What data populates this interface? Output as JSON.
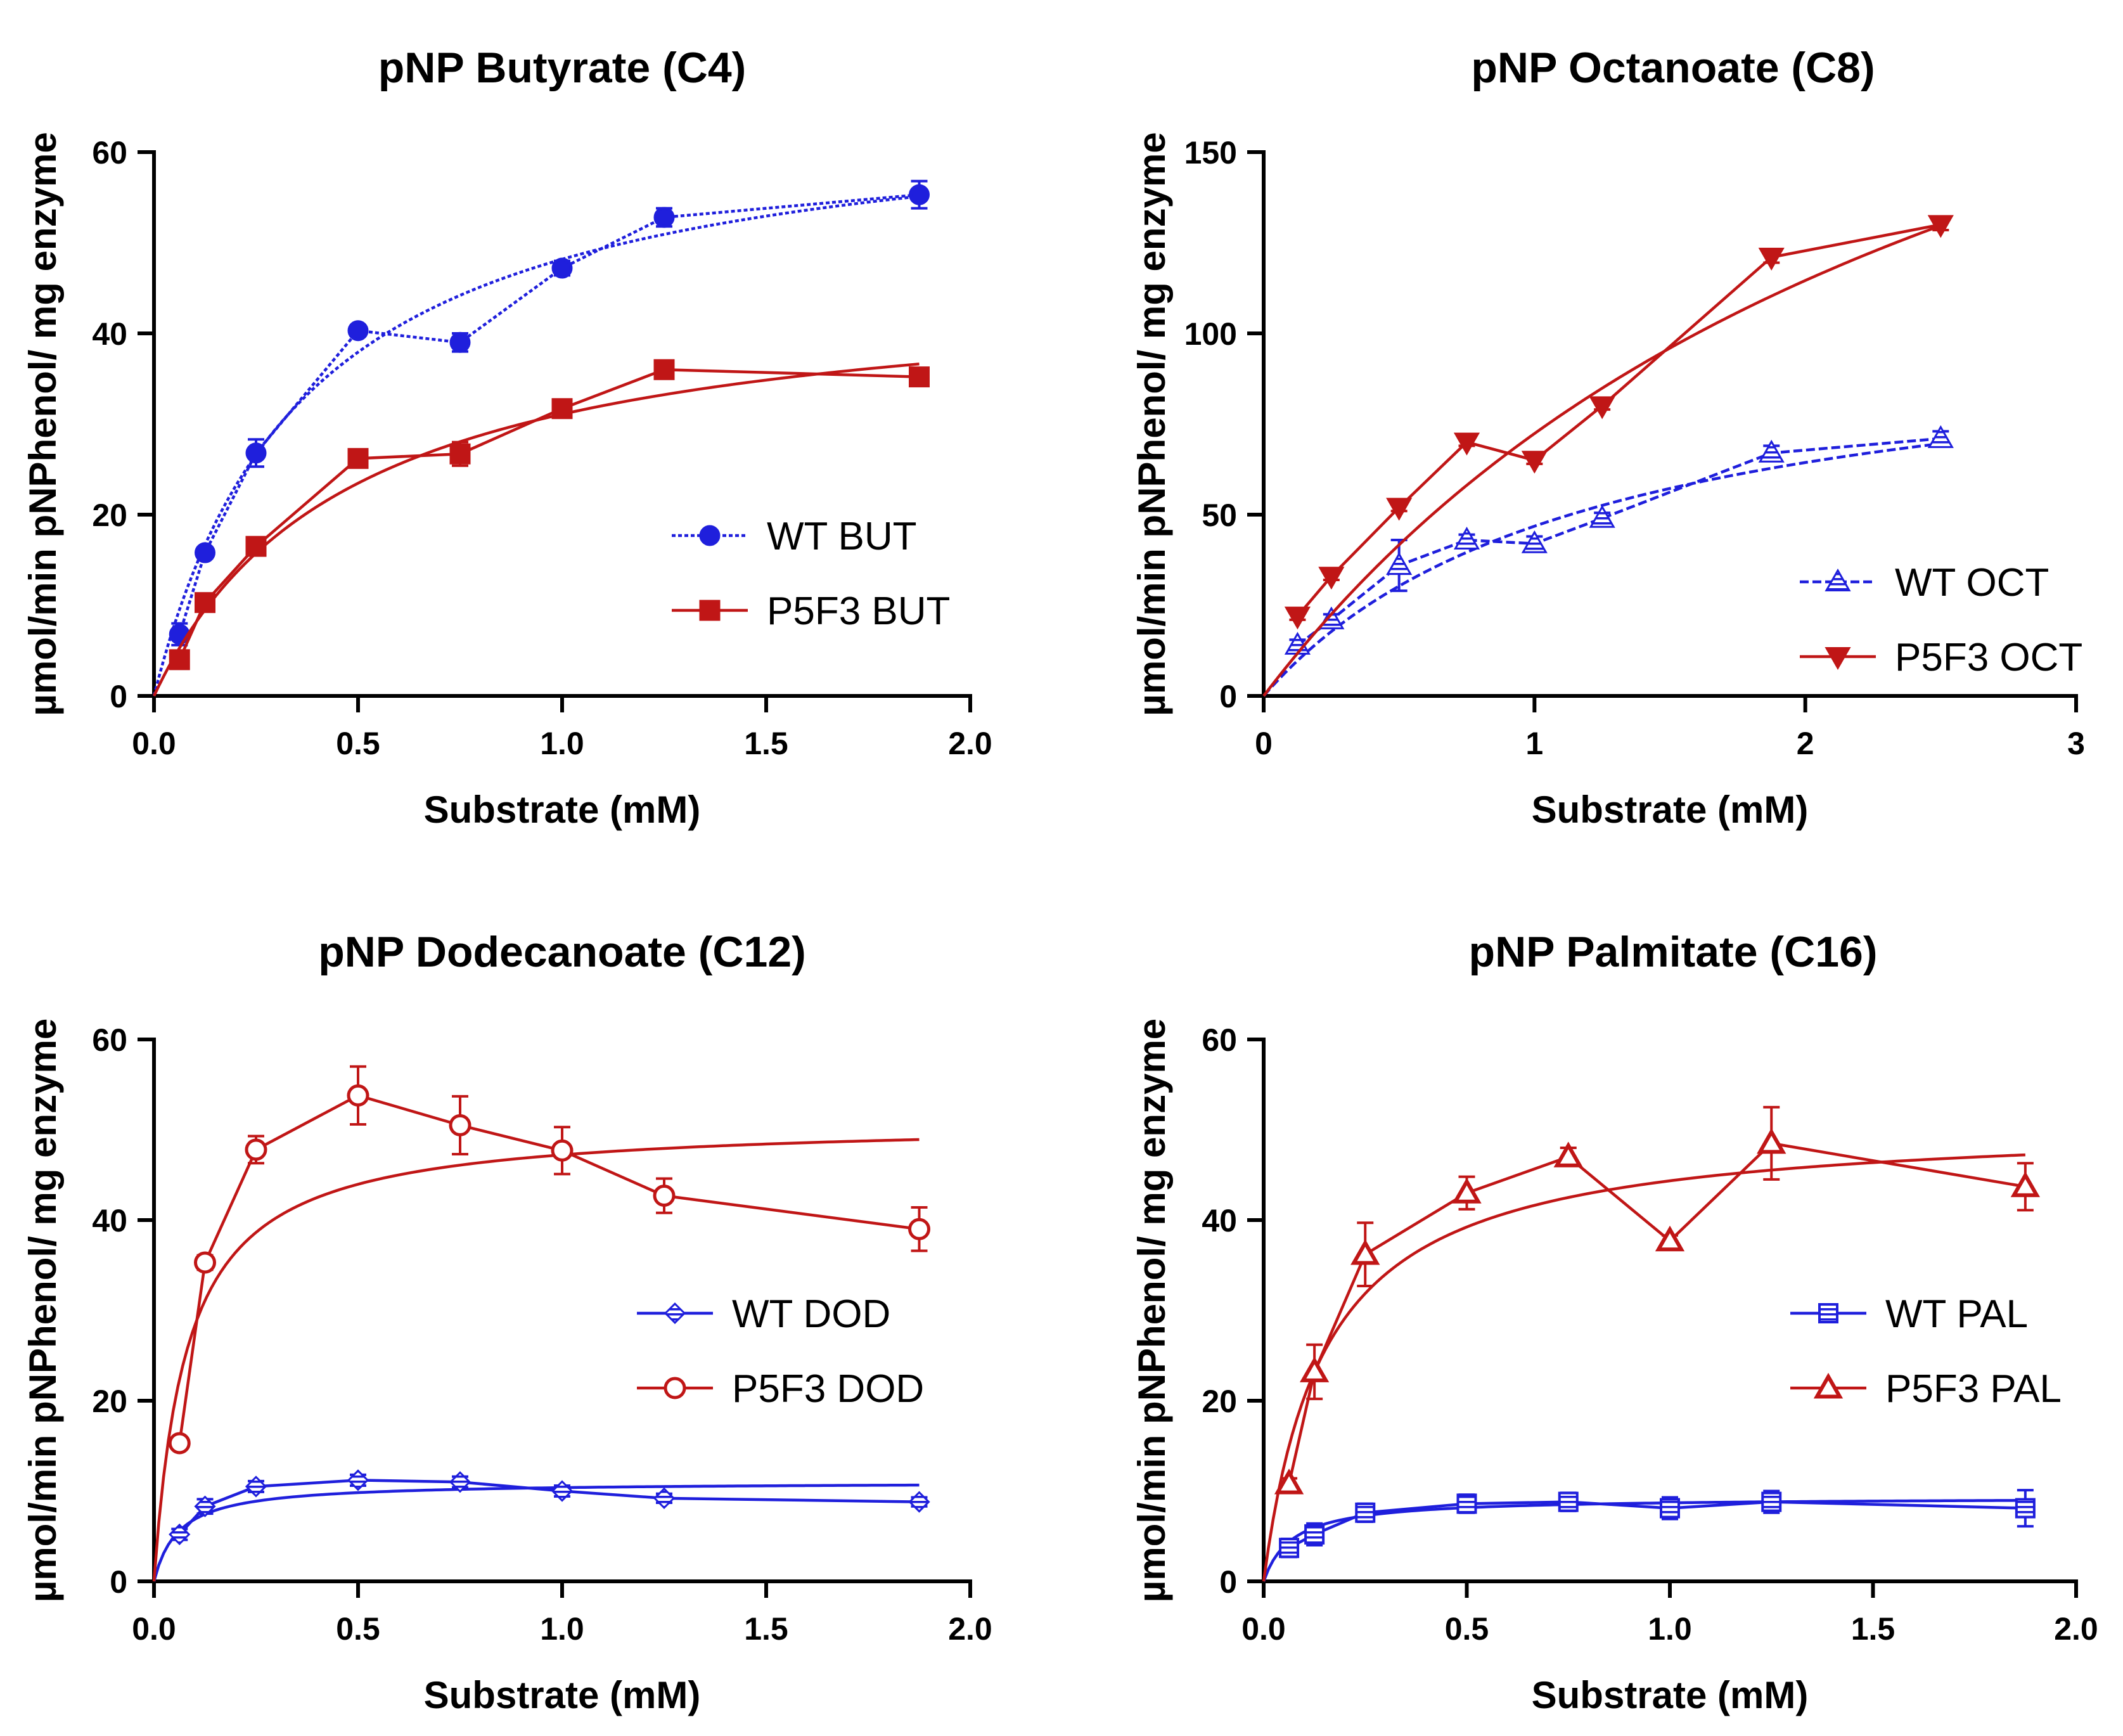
{
  "chart_data": [
    {
      "type": "line",
      "title": "pNP Butyrate (C4)",
      "xlabel": "Substrate (mM)",
      "ylabel": "µmol/min pNPhenol/ mg enzyme",
      "xlim": [
        0,
        2.0
      ],
      "ylim": [
        0,
        60
      ],
      "xticks": [
        0.0,
        0.5,
        1.0,
        1.5,
        2.0
      ],
      "yticks": [
        0,
        20,
        40,
        60
      ],
      "xtick_labels": [
        "0.0",
        "0.5",
        "1.0",
        "1.5",
        "2.0"
      ],
      "ytick_labels": [
        "0",
        "20",
        "40",
        "60"
      ],
      "legend_position": "right-middle",
      "series": [
        {
          "name": "WT BUT",
          "color": "#1f1fdc",
          "marker": "circle-filled",
          "line": "dotted",
          "x": [
            0.0625,
            0.125,
            0.25,
            0.5,
            0.75,
            1.0,
            1.25,
            1.875
          ],
          "y": [
            6.8,
            15.8,
            26.8,
            40.3,
            39.0,
            47.2,
            52.8,
            55.3
          ],
          "err": [
            1.2,
            0.6,
            1.5,
            0.6,
            1.0,
            0.8,
            1.0,
            1.5
          ],
          "fit": {
            "model": "michaelis-menten",
            "vmax": 66.0,
            "km": 0.37
          }
        },
        {
          "name": "P5F3 BUT",
          "color": "#c01616",
          "marker": "square-filled",
          "line": "solid",
          "x": [
            0.0625,
            0.125,
            0.25,
            0.5,
            0.75,
            1.0,
            1.25,
            1.875
          ],
          "y": [
            4.0,
            10.3,
            16.5,
            26.2,
            26.7,
            31.7,
            36.0,
            35.2
          ],
          "err": [
            0.5,
            0.5,
            0.6,
            0.6,
            1.3,
            0.6,
            0.6,
            0.5
          ],
          "fit": {
            "model": "michaelis-menten",
            "vmax": 46.0,
            "km": 0.48
          }
        }
      ]
    },
    {
      "type": "line",
      "title": "pNP Octanoate (C8)",
      "xlabel": "Substrate (mM)",
      "ylabel": "µmol/min pNPhenol/ mg enzyme",
      "xlim": [
        0,
        3
      ],
      "ylim": [
        0,
        150
      ],
      "xticks": [
        0,
        1,
        2,
        3
      ],
      "yticks": [
        0,
        50,
        100,
        150
      ],
      "xtick_labels": [
        "0",
        "1",
        "2",
        "3"
      ],
      "ytick_labels": [
        "0",
        "50",
        "100",
        "150"
      ],
      "legend_position": "bottom-right",
      "series": [
        {
          "name": "WT OCT",
          "color": "#1f1fdc",
          "marker": "triangle-up-striped",
          "line": "dashed",
          "x": [
            0.125,
            0.25,
            0.5,
            0.75,
            1.0,
            1.25,
            1.875,
            2.5
          ],
          "y": [
            14.0,
            21.0,
            36.0,
            43.0,
            42.0,
            49.0,
            67.0,
            71.0
          ],
          "err": [
            1.5,
            1.5,
            7.0,
            1.5,
            2.0,
            1.5,
            2.0,
            2.0
          ],
          "fit": {
            "model": "michaelis-menten",
            "vmax": 103.0,
            "km": 1.2
          }
        },
        {
          "name": "P5F3 OCT",
          "color": "#c01616",
          "marker": "triangle-down-filled",
          "line": "solid",
          "x": [
            0.125,
            0.25,
            0.5,
            0.75,
            1.0,
            1.25,
            1.875,
            2.5
          ],
          "y": [
            22.0,
            33.0,
            52.0,
            70.0,
            65.0,
            80.0,
            121.0,
            130.0
          ],
          "err": [
            1.0,
            1.0,
            1.0,
            1.0,
            1.0,
            1.0,
            1.5,
            1.5
          ],
          "fit": {
            "model": "michaelis-menten",
            "vmax": 275.0,
            "km": 2.8
          }
        }
      ]
    },
    {
      "type": "line",
      "title": "pNP Dodecanoate (C12)",
      "xlabel": "Substrate (mM)",
      "ylabel": "µmol/min pNPhenol/ mg enzyme",
      "xlim": [
        0,
        2.0
      ],
      "ylim": [
        0,
        60
      ],
      "xticks": [
        0.0,
        0.5,
        1.0,
        1.5,
        2.0
      ],
      "yticks": [
        0,
        20,
        40,
        60
      ],
      "xtick_labels": [
        "0.0",
        "0.5",
        "1.0",
        "1.5",
        "2.0"
      ],
      "ytick_labels": [
        "0",
        "20",
        "40",
        "60"
      ],
      "legend_position": "right-middle",
      "series": [
        {
          "name": "WT DOD",
          "color": "#1f1fdc",
          "marker": "diamond-striped",
          "line": "solid",
          "x": [
            0.0625,
            0.125,
            0.25,
            0.5,
            0.75,
            1.0,
            1.25,
            1.875
          ],
          "y": [
            5.2,
            8.3,
            10.5,
            11.2,
            11.0,
            10.0,
            9.2,
            8.8
          ],
          "err": [
            0.6,
            0.8,
            0.6,
            0.6,
            0.6,
            0.6,
            0.5,
            0.5
          ],
          "fit": {
            "model": "michaelis-menten",
            "vmax": 11.0,
            "km": 0.06
          }
        },
        {
          "name": "P5F3 DOD",
          "color": "#c01616",
          "marker": "circle-open",
          "line": "solid",
          "x": [
            0.0625,
            0.125,
            0.25,
            0.5,
            0.75,
            1.0,
            1.25,
            1.875
          ],
          "y": [
            15.3,
            35.3,
            47.8,
            53.8,
            50.5,
            47.7,
            42.7,
            39.0
          ],
          "err": [
            0.5,
            0.8,
            1.5,
            3.2,
            3.2,
            2.6,
            1.9,
            2.4
          ],
          "fit": {
            "model": "michaelis-menten",
            "vmax": 51.0,
            "km": 0.08
          }
        }
      ]
    },
    {
      "type": "line",
      "title": "pNP Palmitate (C16)",
      "xlabel": "Substrate (mM)",
      "ylabel": "µmol/min pNPhenol/ mg enzyme",
      "xlim": [
        0,
        2.0
      ],
      "ylim": [
        0,
        60
      ],
      "xticks": [
        0.0,
        0.5,
        1.0,
        1.5,
        2.0
      ],
      "yticks": [
        0,
        20,
        40,
        60
      ],
      "xtick_labels": [
        "0.0",
        "0.5",
        "1.0",
        "1.5",
        "2.0"
      ],
      "ytick_labels": [
        "0",
        "20",
        "40",
        "60"
      ],
      "legend_position": "right-middle",
      "series": [
        {
          "name": "WT PAL",
          "color": "#1f1fdc",
          "marker": "square-striped",
          "line": "solid",
          "x": [
            0.0625,
            0.125,
            0.25,
            0.5,
            0.75,
            1.0,
            1.25,
            1.875
          ],
          "y": [
            3.7,
            5.2,
            7.6,
            8.6,
            8.8,
            8.1,
            8.8,
            8.1
          ],
          "err": [
            1.0,
            1.2,
            1.0,
            1.0,
            1.0,
            1.2,
            1.2,
            2.0
          ],
          "fit": {
            "model": "michaelis-menten",
            "vmax": 9.3,
            "km": 0.07
          }
        },
        {
          "name": "P5F3 PAL",
          "color": "#c01616",
          "marker": "triangle-up-open",
          "line": "solid",
          "x": [
            0.0625,
            0.125,
            0.25,
            0.5,
            0.75,
            1.0,
            1.25,
            1.875
          ],
          "y": [
            10.8,
            23.2,
            36.2,
            43.0,
            47.0,
            37.7,
            48.5,
            43.7
          ],
          "err": [
            0.6,
            3.0,
            3.5,
            1.8,
            1.0,
            0.6,
            4.0,
            2.6
          ],
          "fit": {
            "model": "michaelis-menten",
            "vmax": 51.0,
            "km": 0.15
          }
        }
      ]
    }
  ]
}
